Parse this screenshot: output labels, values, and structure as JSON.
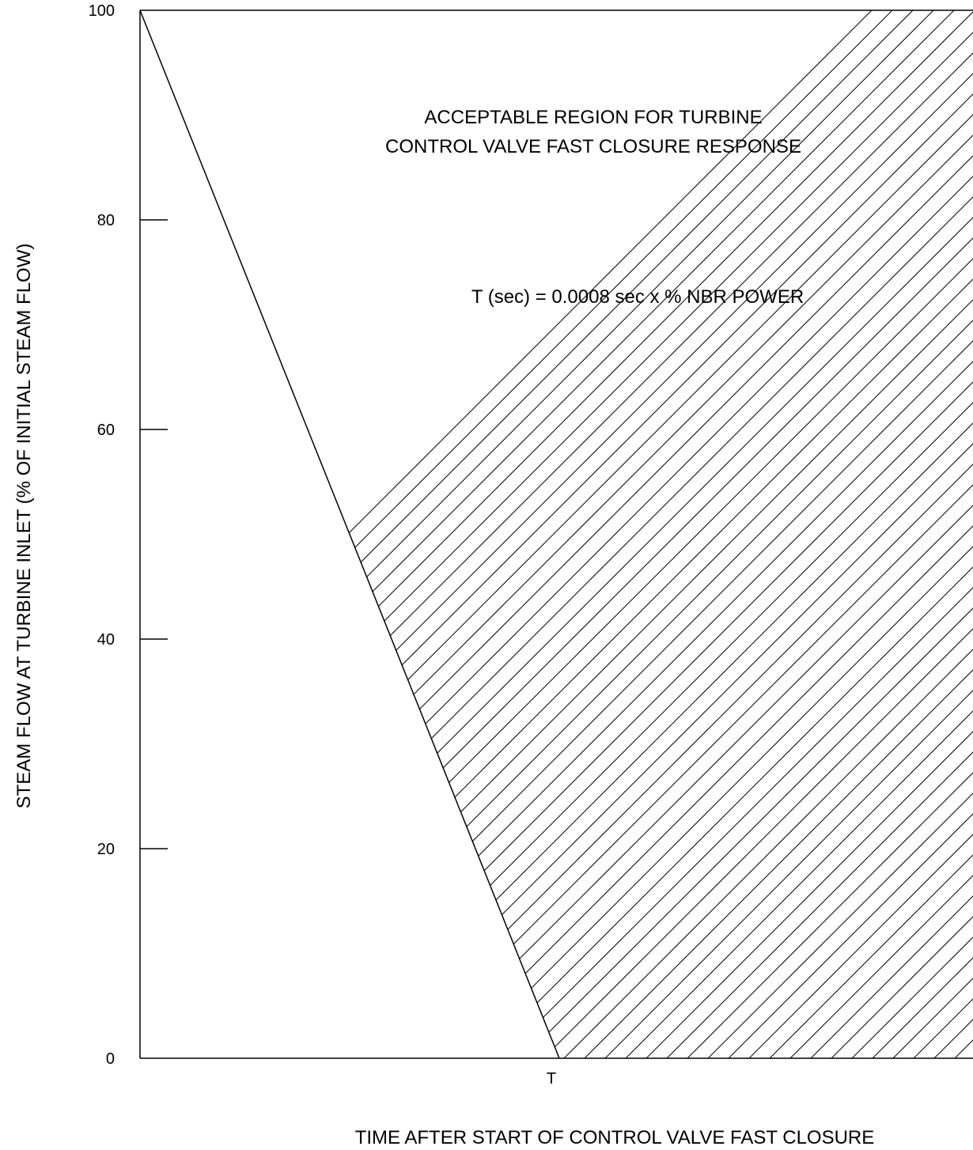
{
  "chart_data": {
    "type": "area",
    "title": "",
    "xlabel": "TIME AFTER START OF CONTROL VALVE FAST CLOSURE",
    "ylabel": "STEAM FLOW AT TURBINE INLET (% OF INITIAL STEAM FLOW)",
    "ylim": [
      0,
      100
    ],
    "y_ticks": [
      0,
      20,
      40,
      60,
      80,
      100
    ],
    "x_ticks": [
      {
        "value": 1,
        "label": "T"
      }
    ],
    "xlim": [
      0,
      2
    ],
    "grid": false,
    "series": [
      {
        "x": [
          0,
          1
        ],
        "y": [
          100,
          0
        ]
      }
    ],
    "shaded_region": {
      "fill": "diagonal-hatch",
      "bound": "right of line"
    },
    "annotations": [
      {
        "lines": [
          "ACCEPTABLE REGION FOR TURBINE",
          "CONTROL VALVE FAST CLOSURE RESPONSE"
        ]
      },
      {
        "lines": [
          "T (sec) = 0.0008 sec x % NBR POWER"
        ]
      }
    ],
    "colors": {
      "line": "#000000",
      "hatch": "#000000",
      "background": "#ffffff"
    }
  }
}
